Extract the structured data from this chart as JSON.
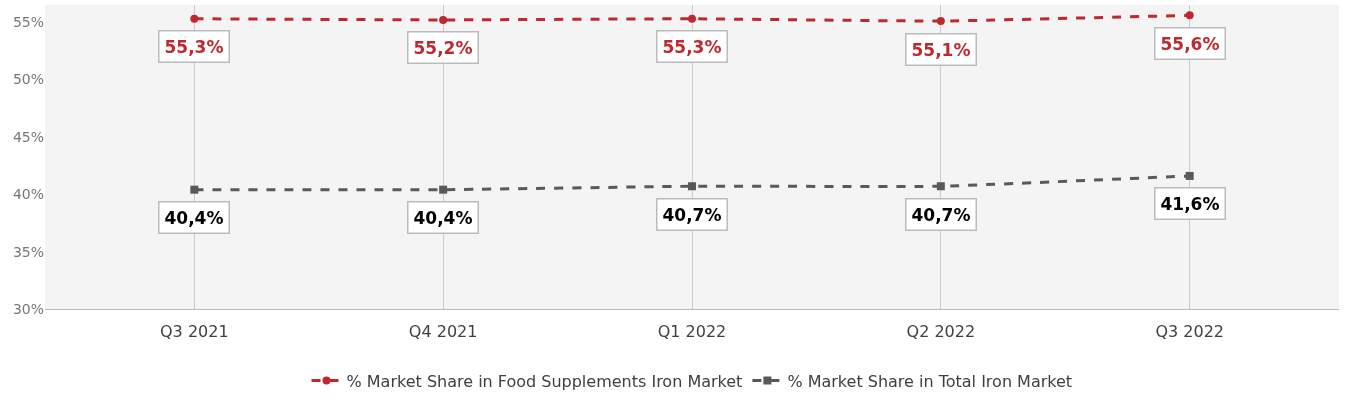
{
  "chart_data": {
    "type": "line",
    "categories": [
      "Q3 2021",
      "Q4 2021",
      "Q1 2022",
      "Q2 2022",
      "Q3 2022"
    ],
    "series": [
      {
        "name": "% Market Share in Food Supplements Iron Market",
        "color": "#c0282d",
        "values": [
          55.3,
          55.2,
          55.3,
          55.1,
          55.6
        ],
        "value_labels": [
          "55,3%",
          "55,2%",
          "55,3%",
          "55,1%",
          "55,6%"
        ],
        "marker": "circle"
      },
      {
        "name": "% Market Share in Total Iron Market",
        "color": "#595959",
        "values": [
          40.4,
          40.4,
          40.7,
          40.7,
          41.6
        ],
        "value_labels": [
          "40,4%",
          "40,4%",
          "40,7%",
          "40,7%",
          "41,6%"
        ],
        "marker": "square"
      }
    ],
    "ylim": [
      30,
      56.5
    ],
    "yticks": [
      {
        "value": 30,
        "label": "30%"
      },
      {
        "value": 35,
        "label": "35%"
      },
      {
        "value": 40,
        "label": "40%"
      },
      {
        "value": 45,
        "label": "45%"
      },
      {
        "value": 50,
        "label": "50%"
      },
      {
        "value": 55,
        "label": "55%"
      }
    ],
    "grid": "x",
    "legend": "bottom",
    "line_style": "dashed"
  }
}
